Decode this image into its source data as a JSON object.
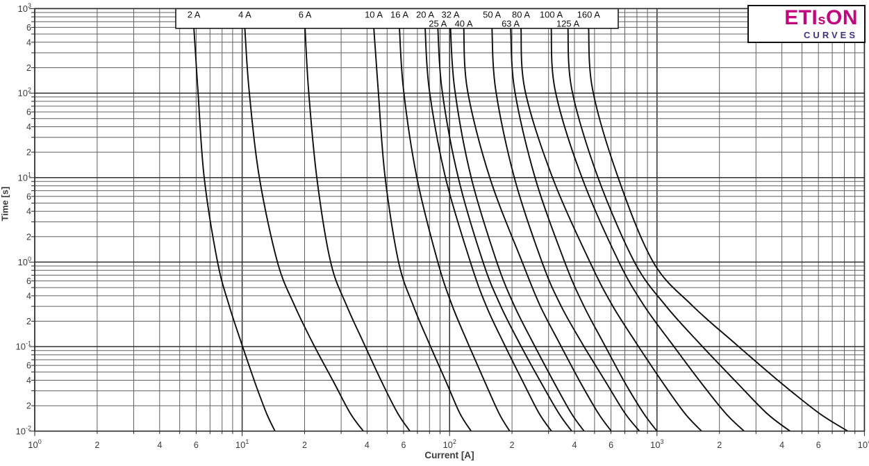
{
  "logo": {
    "brand_prefix": "ETI",
    "brand_mid": "s",
    "brand_suffix": "ON",
    "subtitle": "CURVES",
    "brand_color": "#C1067F",
    "subtitle_color": "#46307F"
  },
  "chart_data": {
    "type": "line",
    "title": "",
    "xlabel": "Current [A]",
    "ylabel": "Time [s]",
    "x_scale": "log",
    "y_scale": "log",
    "xlim": [
      1,
      10000
    ],
    "ylim": [
      0.01,
      1000
    ],
    "grid": "on",
    "x_major_ticks": [
      {
        "exp": "0"
      },
      {
        "exp": "1"
      },
      {
        "exp": "2"
      },
      {
        "exp": "3"
      },
      {
        "exp": "4"
      }
    ],
    "y_major_ticks": [
      {
        "exp": "3"
      },
      {
        "exp": "2"
      },
      {
        "exp": "1"
      },
      {
        "exp": "0"
      },
      {
        "exp": "-1"
      },
      {
        "exp": "-2"
      }
    ],
    "minor_tick_labels": [
      "2",
      "4",
      "6"
    ],
    "curve_color": "#0d0d0d",
    "grid_major_color": "#2e2e2e",
    "grid_minor_color": "#5f5f5f",
    "legend_position": "top-inside-box",
    "series": [
      {
        "name": "2 A",
        "label_row": 1,
        "points_amps_seconds": [
          [
            5.85,
            593
          ],
          [
            6.12,
            108
          ],
          [
            6.56,
            10.1
          ],
          [
            7.61,
            1
          ],
          [
            8.66,
            0.306
          ],
          [
            9.95,
            0.108
          ],
          [
            11.5,
            0.0382
          ],
          [
            13.1,
            0.0163
          ],
          [
            14.4,
            0.01
          ]
        ]
      },
      {
        "name": "4 A",
        "label_row": 1,
        "points_amps_seconds": [
          [
            10.3,
            593
          ],
          [
            10.8,
            108
          ],
          [
            12.1,
            10.1
          ],
          [
            14.8,
            1
          ],
          [
            17.9,
            0.306
          ],
          [
            22.0,
            0.108
          ],
          [
            27.6,
            0.0382
          ],
          [
            33.2,
            0.0163
          ],
          [
            38.4,
            0.01
          ]
        ]
      },
      {
        "name": "6 A",
        "label_row": 1,
        "points_amps_seconds": [
          [
            20.1,
            593
          ],
          [
            20.9,
            108
          ],
          [
            22.9,
            10.1
          ],
          [
            26.7,
            1
          ],
          [
            31.9,
            0.306
          ],
          [
            38.7,
            0.108
          ],
          [
            47.1,
            0.0382
          ],
          [
            56.2,
            0.0163
          ],
          [
            64.4,
            0.01
          ]
        ]
      },
      {
        "name": "10 A",
        "label_row": 1,
        "points_amps_seconds": [
          [
            43.1,
            593
          ],
          [
            45.3,
            108
          ],
          [
            48.9,
            10.1
          ],
          [
            56.8,
            1
          ],
          [
            66.8,
            0.306
          ],
          [
            79.9,
            0.108
          ],
          [
            96.3,
            0.0382
          ],
          [
            112,
            0.0163
          ],
          [
            127,
            0.01
          ]
        ]
      },
      {
        "name": "16 A",
        "label_row": 1,
        "points_amps_seconds": [
          [
            57.3,
            593
          ],
          [
            60.0,
            108
          ],
          [
            69.5,
            10.1
          ],
          [
            87.8,
            1
          ],
          [
            103,
            0.306
          ],
          [
            123,
            0.108
          ],
          [
            148,
            0.0382
          ],
          [
            173,
            0.0163
          ],
          [
            195,
            0.01
          ]
        ]
      },
      {
        "name": "20 A",
        "label_row": 1,
        "points_amps_seconds": [
          [
            76.2,
            593
          ],
          [
            79.9,
            108
          ],
          [
            95.5,
            10.1
          ],
          [
            126,
            1
          ],
          [
            150,
            0.306
          ],
          [
            183,
            0.108
          ],
          [
            226,
            0.0382
          ],
          [
            270,
            0.0163
          ],
          [
            310,
            0.01
          ]
        ]
      },
      {
        "name": "25 A",
        "label_row": 2,
        "points_amps_seconds": [
          [
            87.8,
            593
          ],
          [
            92.0,
            108
          ],
          [
            110,
            10.1
          ],
          [
            145,
            1
          ],
          [
            176,
            0.306
          ],
          [
            218,
            0.108
          ],
          [
            275,
            0.0382
          ],
          [
            336,
            0.0163
          ],
          [
            388,
            0.01
          ]
        ]
      },
      {
        "name": "32 A",
        "label_row": 1,
        "points_amps_seconds": [
          [
            101,
            593
          ],
          [
            106,
            108
          ],
          [
            127,
            10.1
          ],
          [
            169,
            1
          ],
          [
            205,
            0.306
          ],
          [
            254,
            0.108
          ],
          [
            318,
            0.0382
          ],
          [
            386,
            0.0163
          ],
          [
            445,
            0.01
          ]
        ]
      },
      {
        "name": "40 A",
        "label_row": 2,
        "points_amps_seconds": [
          [
            117,
            593
          ],
          [
            122,
            108
          ],
          [
            156,
            10.1
          ],
          [
            224,
            1
          ],
          [
            273,
            0.306
          ],
          [
            340,
            0.108
          ],
          [
            426,
            0.0382
          ],
          [
            521,
            0.0163
          ],
          [
            602,
            0.01
          ]
        ]
      },
      {
        "name": "50 A",
        "label_row": 1,
        "points_amps_seconds": [
          [
            160,
            593
          ],
          [
            167,
            108
          ],
          [
            205,
            10.1
          ],
          [
            279,
            1
          ],
          [
            344,
            0.306
          ],
          [
            437,
            0.108
          ],
          [
            566,
            0.0382
          ],
          [
            701,
            0.0163
          ],
          [
            823,
            0.01
          ]
        ]
      },
      {
        "name": "63 A",
        "label_row": 2,
        "points_amps_seconds": [
          [
            197,
            593
          ],
          [
            206,
            108
          ],
          [
            258,
            10.1
          ],
          [
            359,
            1
          ],
          [
            443,
            0.306
          ],
          [
            555,
            0.108
          ],
          [
            697,
            0.0382
          ],
          [
            861,
            0.0163
          ],
          [
            1000,
            0.01
          ]
        ]
      },
      {
        "name": "80 A",
        "label_row": 1,
        "points_amps_seconds": [
          [
            221,
            593
          ],
          [
            231,
            108
          ],
          [
            313,
            10.1
          ],
          [
            475,
            1
          ],
          [
            610,
            0.306
          ],
          [
            799,
            0.108
          ],
          [
            1060,
            0.0382
          ],
          [
            1360,
            0.0163
          ],
          [
            1640,
            0.01
          ]
        ]
      },
      {
        "name": "100 A",
        "label_row": 1,
        "points_amps_seconds": [
          [
            309,
            593
          ],
          [
            323,
            108
          ],
          [
            434,
            10.1
          ],
          [
            656,
            1
          ],
          [
            866,
            0.306
          ],
          [
            1180,
            0.108
          ],
          [
            1620,
            0.0382
          ],
          [
            2140,
            0.0163
          ],
          [
            2630,
            0.01
          ]
        ]
      },
      {
        "name": "125 A",
        "label_row": 2,
        "points_amps_seconds": [
          [
            372,
            593
          ],
          [
            389,
            108
          ],
          [
            519,
            10.1
          ],
          [
            779,
            1
          ],
          [
            1100,
            0.306
          ],
          [
            1610,
            0.108
          ],
          [
            2410,
            0.0382
          ],
          [
            3380,
            0.0163
          ],
          [
            4380,
            0.01
          ]
        ]
      },
      {
        "name": "160 A",
        "label_row": 1,
        "points_amps_seconds": [
          [
            468,
            593
          ],
          [
            490,
            108
          ],
          [
            649,
            10.1
          ],
          [
            959,
            1
          ],
          [
            1480,
            0.306
          ],
          [
            2390,
            0.108
          ],
          [
            3910,
            0.0382
          ],
          [
            6050,
            0.0163
          ],
          [
            8320,
            0.01
          ]
        ]
      }
    ]
  }
}
